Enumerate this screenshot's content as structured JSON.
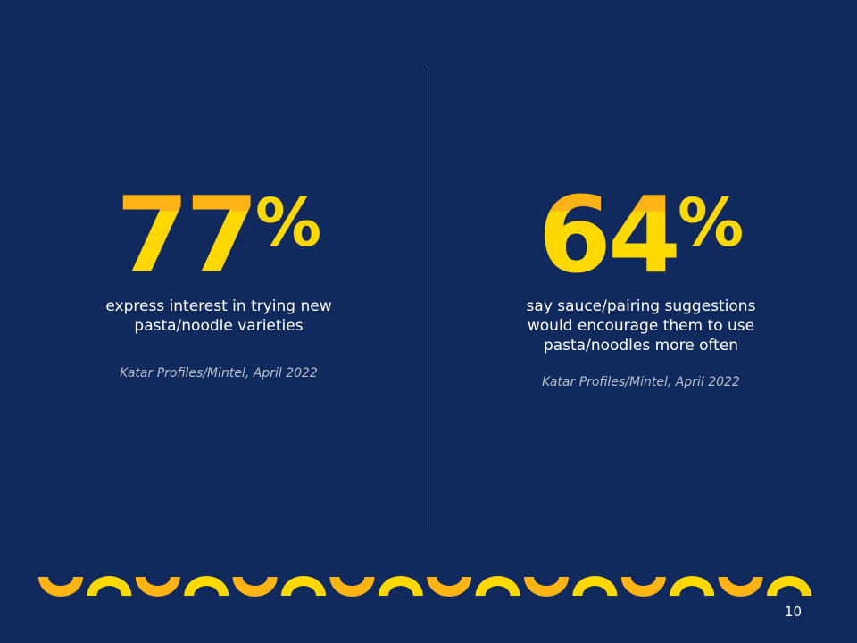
{
  "stats": [
    {
      "value": "77",
      "unit": "%",
      "description": "express interest in trying new pasta/noodle varieties",
      "source": "Katar Profiles/Mintel, April 2022"
    },
    {
      "value": "64",
      "unit": "%",
      "description": "say sauce/pairing suggestions would encourage them to use pasta/noodles more often",
      "source": "Katar Profiles/Mintel, April 2022"
    }
  ],
  "page_number": "10",
  "colors": {
    "background": "#112a5e",
    "yellow": "#ffd800",
    "orange": "#ffb414"
  },
  "decoration": {
    "icon": "macaroni-border-icon",
    "count": 16
  }
}
